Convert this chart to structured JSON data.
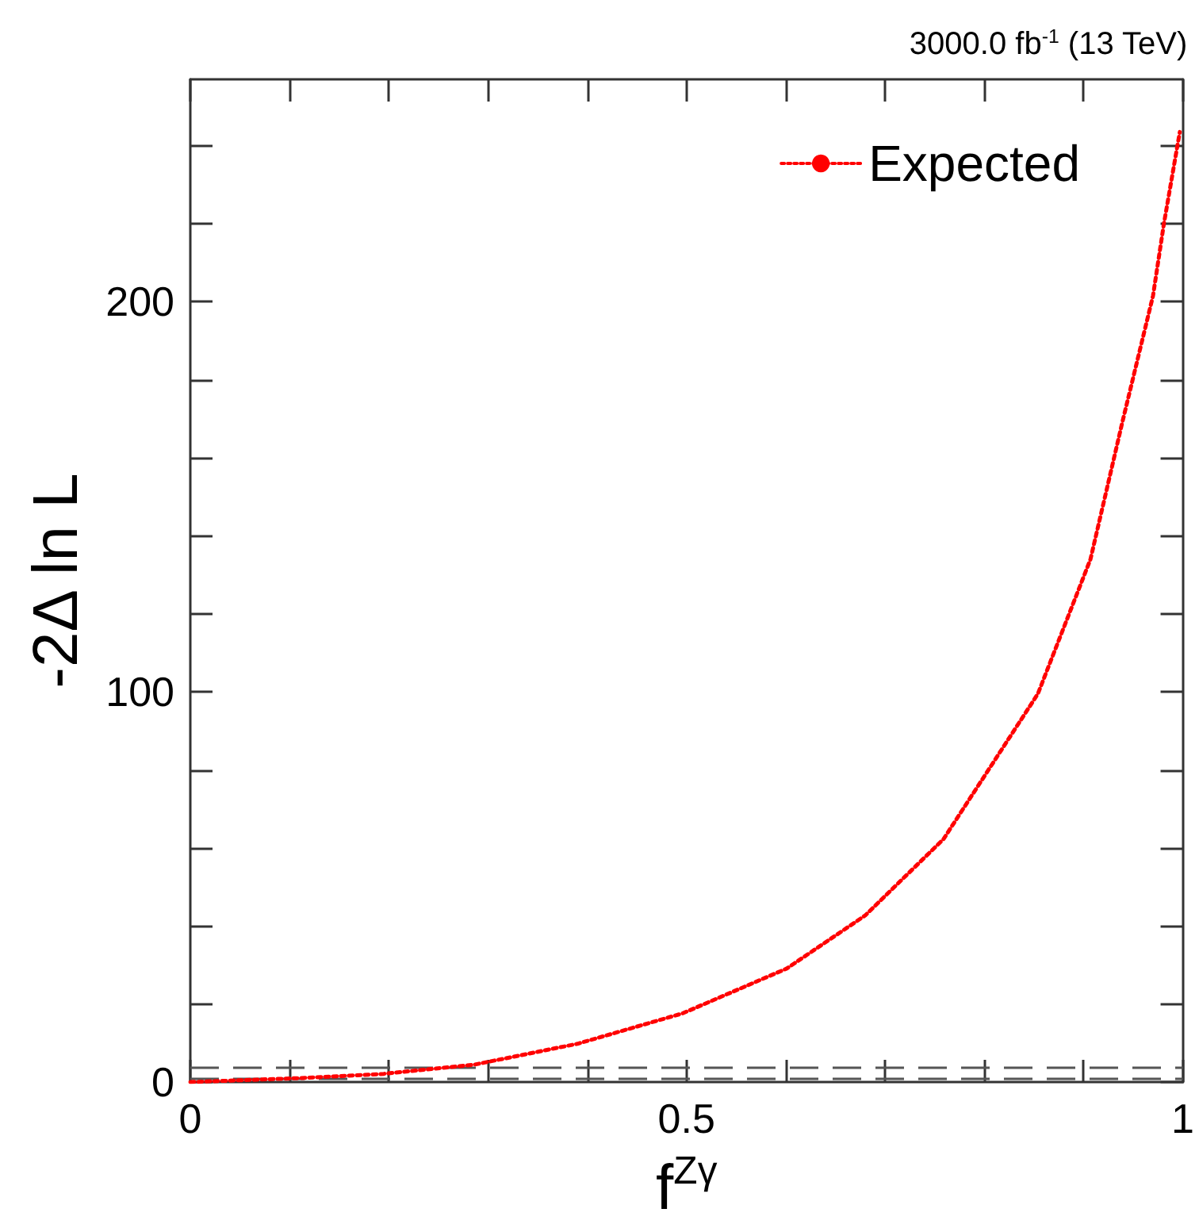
{
  "chart_data": {
    "type": "line",
    "title": "3000.0 fb$^{-1}$ (13 TeV)",
    "xlabel": "f$^{Zγ}$",
    "ylabel": "-2Δ ln L",
    "xlim": [
      0,
      1
    ],
    "ylim": [
      0,
      257
    ],
    "xticks": [
      0,
      {
        "value": 0.1,
        "label": null
      },
      {
        "value": 0.2,
        "label": null
      },
      {
        "value": 0.3,
        "label": null
      },
      {
        "value": 0.4,
        "label": null
      },
      0.5,
      {
        "value": 0.6,
        "label": null
      },
      {
        "value": 0.7,
        "label": null
      },
      {
        "value": 0.8,
        "label": null
      },
      {
        "value": 0.9,
        "label": null
      },
      1
    ],
    "yticks": [
      0,
      {
        "value": 20,
        "label": null
      },
      {
        "value": 40,
        "label": null
      },
      {
        "value": 60,
        "label": null
      },
      {
        "value": 80,
        "label": null
      },
      100,
      {
        "value": 120,
        "label": null
      },
      {
        "value": 140,
        "label": null
      },
      {
        "value": 160,
        "label": null
      },
      {
        "value": 180,
        "label": null
      },
      200,
      {
        "value": 220,
        "label": null
      },
      {
        "value": 240,
        "label": null
      }
    ],
    "series": [
      {
        "name": "Expected",
        "color": "#ff0000",
        "x": [
          0,
          0.11,
          0.195,
          0.285,
          0.39,
          0.496,
          0.601,
          0.68,
          0.759,
          0.854,
          0.907,
          0.939,
          0.97,
          0.981,
          0.997
        ],
        "values": [
          0,
          1,
          2.1,
          4.4,
          9.8,
          17.6,
          29.1,
          42.7,
          62.3,
          99.5,
          134,
          169,
          201.5,
          220,
          243.5
        ]
      }
    ],
    "ref_lines": [
      {
        "axis": "y",
        "value": 1,
        "color": "#555555",
        "line_style": "dashed"
      },
      {
        "axis": "y",
        "value": 3.84,
        "color": "#555555",
        "line_style": "dashed"
      }
    ],
    "line_style": "dotted",
    "marker": "none",
    "legend": "top right",
    "grid": false
  }
}
